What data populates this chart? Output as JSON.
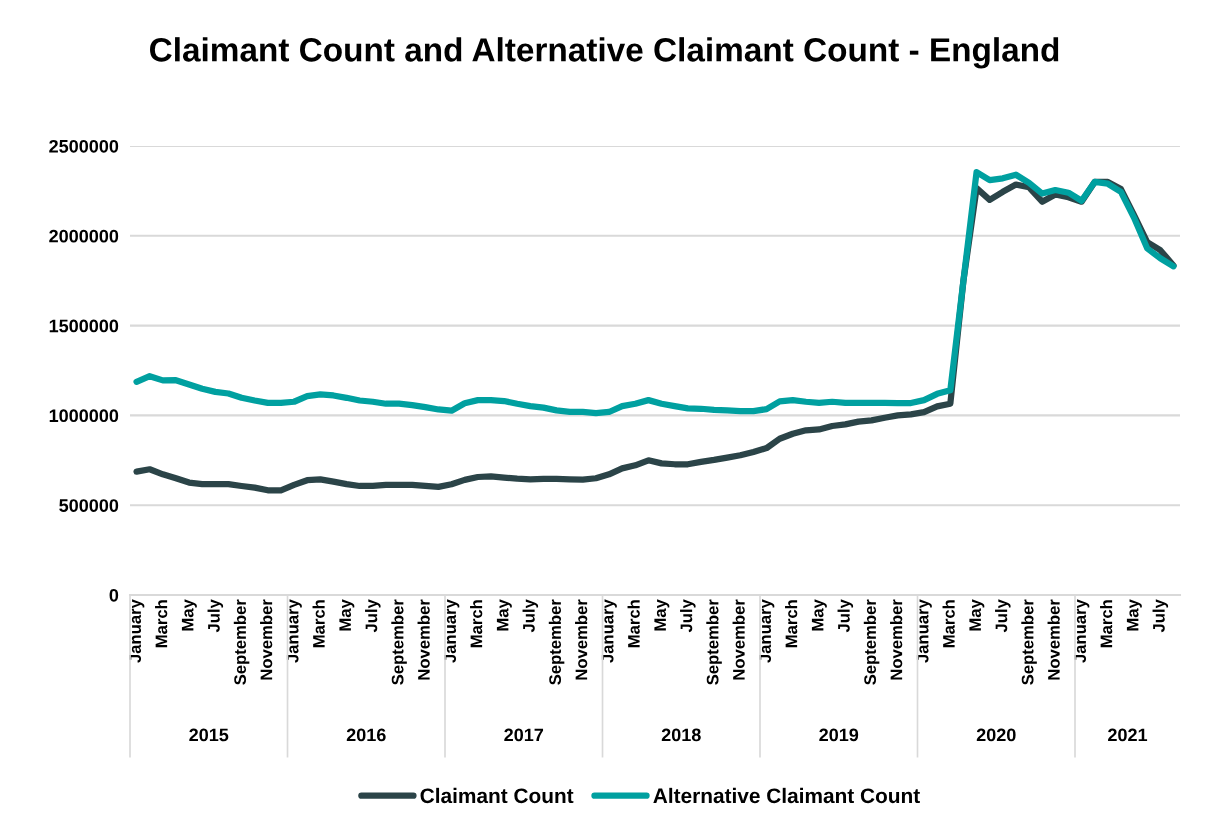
{
  "chart_data": {
    "type": "line",
    "title": "Claimant Count and Alternative Claimant Count - England",
    "categories": [
      "January",
      null,
      "March",
      null,
      "May",
      null,
      "July",
      null,
      "September",
      null,
      "November",
      null,
      "January",
      null,
      "March",
      null,
      "May",
      null,
      "July",
      null,
      "September",
      null,
      "November",
      null,
      "January",
      null,
      "March",
      null,
      "May",
      null,
      "July",
      null,
      "September",
      null,
      "November",
      null,
      "January",
      null,
      "March",
      null,
      "May",
      null,
      "July",
      null,
      "September",
      null,
      "November",
      null,
      "January",
      null,
      "March",
      null,
      "May",
      null,
      "July",
      null,
      "September",
      null,
      "November",
      null,
      "January",
      null,
      "March",
      null,
      "May",
      null,
      "July",
      null,
      "September",
      null,
      "November",
      null,
      "January",
      null,
      "March",
      null,
      "May",
      null,
      "July",
      null
    ],
    "series": [
      {
        "name": "Claimant Count",
        "color": "#2b4448",
        "values": [
          687000,
          700000,
          672000,
          650000,
          626000,
          617000,
          617000,
          617000,
          607000,
          598000,
          583000,
          583000,
          613000,
          639000,
          644000,
          631000,
          617000,
          607000,
          607000,
          613000,
          613000,
          613000,
          607000,
          602000,
          617000,
          641000,
          657000,
          661000,
          654000,
          648000,
          644000,
          646000,
          646000,
          644000,
          642000,
          650000,
          672000,
          705000,
          722000,
          750000,
          733000,
          728000,
          728000,
          741000,
          752000,
          765000,
          778000,
          796000,
          818000,
          870000,
          898000,
          917000,
          922000,
          941000,
          950000,
          965000,
          972000,
          987000,
          1000000,
          1006000,
          1018000,
          1050000,
          1065000,
          1750000,
          2265000,
          2200000,
          2245000,
          2285000,
          2270000,
          2190000,
          2230000,
          2215000,
          2190000,
          2300000,
          2300000,
          2260000,
          2115000,
          1965000,
          1920000,
          1835000
        ]
      },
      {
        "name": "Alternative Claimant Count",
        "color": "#00a0a0",
        "values": [
          1187000,
          1218000,
          1195000,
          1196000,
          1172000,
          1148000,
          1131000,
          1122000,
          1098000,
          1083000,
          1070000,
          1070000,
          1076000,
          1107000,
          1117000,
          1111000,
          1098000,
          1083000,
          1076000,
          1065000,
          1065000,
          1057000,
          1046000,
          1033000,
          1026000,
          1068000,
          1085000,
          1085000,
          1080000,
          1065000,
          1052000,
          1043000,
          1028000,
          1020000,
          1019000,
          1013000,
          1019000,
          1052000,
          1065000,
          1085000,
          1065000,
          1052000,
          1039000,
          1037000,
          1031000,
          1028000,
          1024000,
          1024000,
          1035000,
          1078000,
          1085000,
          1076000,
          1070000,
          1076000,
          1070000,
          1070000,
          1070000,
          1070000,
          1069000,
          1069000,
          1085000,
          1120000,
          1140000,
          1750000,
          2355000,
          2310000,
          2320000,
          2340000,
          2295000,
          2235000,
          2255000,
          2240000,
          2195000,
          2300000,
          2290000,
          2245000,
          2100000,
          1930000,
          1875000,
          1830000
        ]
      }
    ],
    "annotations": [
      "2015",
      "2016",
      "2017",
      "2018",
      "2019",
      "2020",
      "2021"
    ],
    "ylim": [
      0,
      2500000
    ],
    "yticks": [
      0,
      500000,
      1000000,
      1500000,
      2000000,
      2500000
    ],
    "grid": "y",
    "legend": "bottom",
    "marker": "none",
    "line_style": "solid"
  }
}
